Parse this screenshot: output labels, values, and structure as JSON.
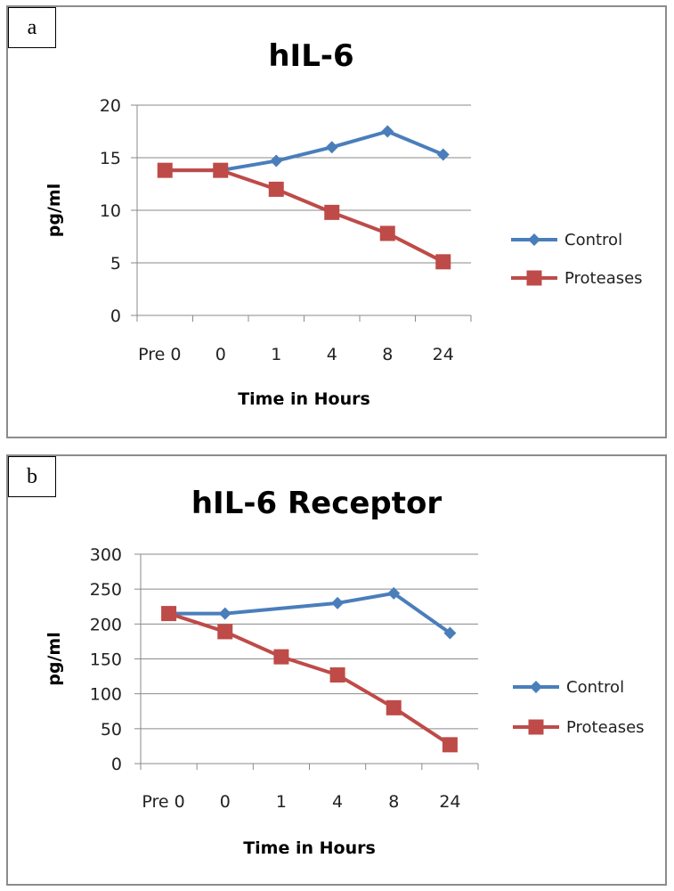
{
  "chart_data": [
    {
      "type": "line",
      "panel_label": "a",
      "title": "hIL-6",
      "xlabel": "Time in Hours",
      "ylabel": "pg/ml",
      "categories": [
        "Pre 0",
        "0",
        "1",
        "4",
        "8",
        "24"
      ],
      "ylim": [
        0,
        20
      ],
      "yticks": [
        0,
        5,
        10,
        15,
        20
      ],
      "grid": true,
      "legend": "right",
      "series": [
        {
          "name": "Control",
          "color": "#4a7ebb",
          "marker": "diamond",
          "values": [
            13.8,
            13.8,
            14.7,
            16.0,
            17.5,
            15.3
          ]
        },
        {
          "name": "Proteases",
          "color": "#be4b48",
          "marker": "square",
          "values": [
            13.8,
            13.8,
            12.0,
            9.8,
            7.8,
            5.1
          ]
        }
      ]
    },
    {
      "type": "line",
      "panel_label": "b",
      "title": "hIL-6 Receptor",
      "xlabel": "Time in Hours",
      "ylabel": "pg/ml",
      "categories": [
        "Pre 0",
        "0",
        "1",
        "4",
        "8",
        "24"
      ],
      "ylim": [
        0,
        300
      ],
      "yticks": [
        0,
        50,
        100,
        150,
        200,
        250,
        300
      ],
      "grid": true,
      "legend": "right",
      "series": [
        {
          "name": "Control",
          "color": "#4a7ebb",
          "marker": "diamond",
          "values": [
            215,
            215,
            null,
            230,
            244,
            187
          ]
        },
        {
          "name": "Proteases",
          "color": "#be4b48",
          "marker": "square",
          "values": [
            215,
            189,
            153,
            127,
            80,
            27
          ]
        }
      ]
    }
  ]
}
